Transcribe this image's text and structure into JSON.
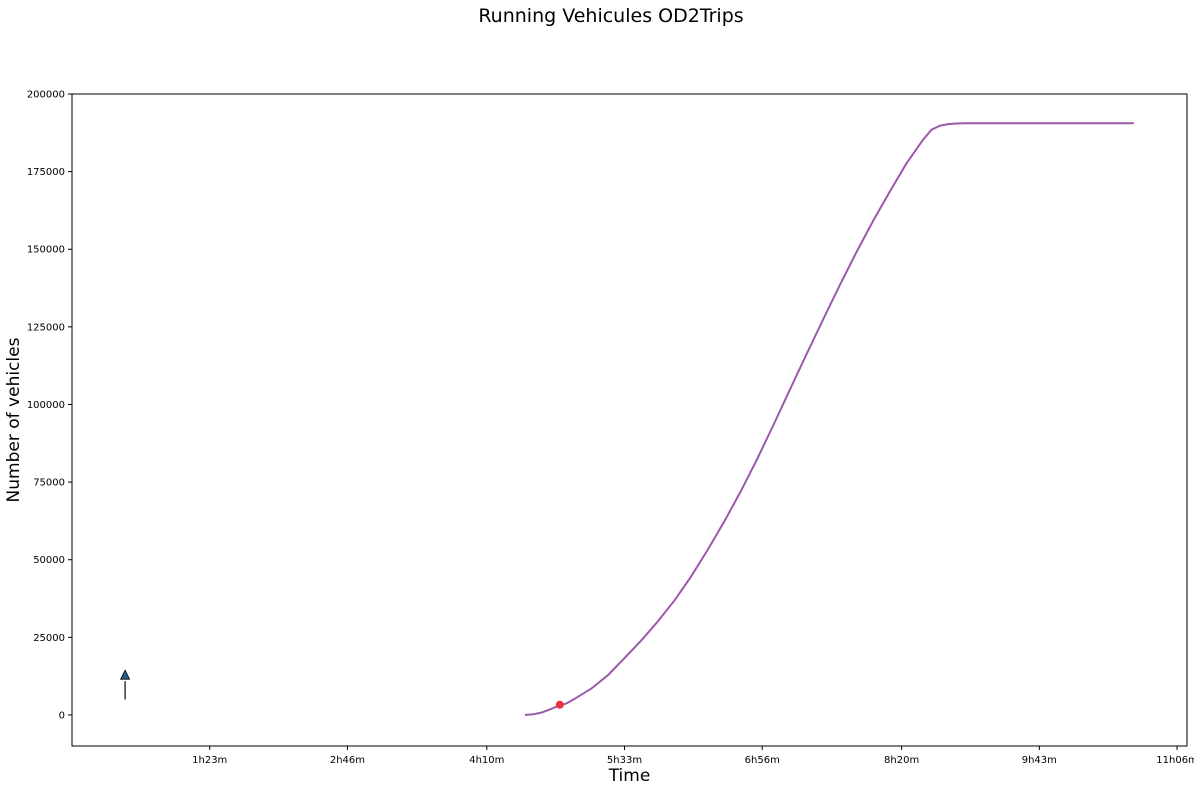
{
  "chart_data": {
    "type": "line",
    "title": "Running Vehicules OD2Trips",
    "xlabel": "Time",
    "ylabel": "Number of vehicles",
    "x_ticks": [
      {
        "minutes": 83,
        "label": "1h23m"
      },
      {
        "minutes": 166,
        "label": "2h46m"
      },
      {
        "minutes": 250,
        "label": "4h10m"
      },
      {
        "minutes": 333,
        "label": "5h33m"
      },
      {
        "minutes": 416,
        "label": "6h56m"
      },
      {
        "minutes": 500,
        "label": "8h20m"
      },
      {
        "minutes": 583,
        "label": "9h43m"
      },
      {
        "minutes": 666,
        "label": "11h06m"
      }
    ],
    "xlim_minutes": [
      0,
      672
    ],
    "y_ticks": [
      0,
      25000,
      50000,
      75000,
      100000,
      125000,
      150000,
      175000,
      200000
    ],
    "ylim": [
      -10000,
      200000
    ],
    "grid": false,
    "series": [
      {
        "color": "#9b59a8",
        "x_minutes": [
          273,
          278,
          283,
          288,
          293,
          298,
          303,
          313,
          323,
          333,
          343,
          353,
          363,
          373,
          383,
          393,
          403,
          413,
          423,
          433,
          443,
          453,
          463,
          473,
          483,
          493,
          503,
          513,
          518,
          523,
          528,
          533,
          538,
          543,
          548,
          553,
          563,
          583,
          613,
          640
        ],
        "y": [
          0,
          200,
          800,
          1800,
          2900,
          3700,
          5200,
          8500,
          12800,
          18300,
          23900,
          30100,
          36800,
          44500,
          53100,
          62200,
          72000,
          82500,
          93700,
          105100,
          116500,
          127700,
          138700,
          149300,
          159300,
          168700,
          177700,
          185300,
          188500,
          189800,
          190300,
          190500,
          190600,
          190600,
          190600,
          190600,
          190600,
          190600,
          190600,
          190600
        ]
      }
    ],
    "markers": [
      {
        "name": "current",
        "x_minutes": 294,
        "y": 3300,
        "color": "#e8323f",
        "shape": "circle"
      }
    ],
    "annotations": [
      {
        "name": "arrow",
        "x_minutes": 32,
        "y_start": 5000,
        "y_end": 12800,
        "color": "#1f5f8b",
        "shape": "triangle-up"
      }
    ]
  }
}
